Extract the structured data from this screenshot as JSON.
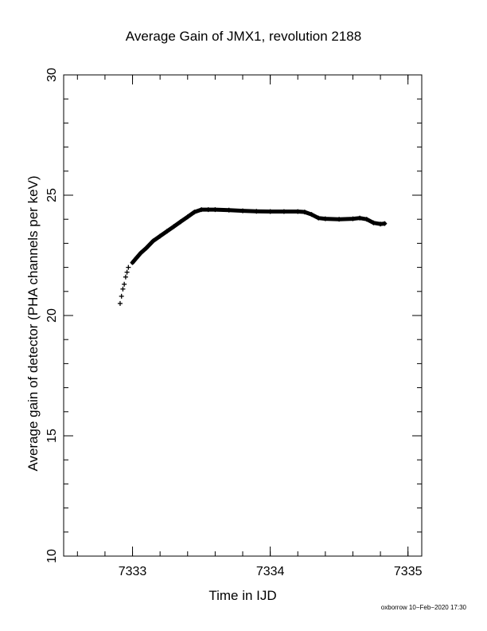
{
  "footer": "oxborrow 10−Feb−2020 17:30",
  "chart_data": {
    "type": "scatter",
    "title": "Average Gain of JMX1, revolution 2188",
    "xlabel": "Time in IJD",
    "ylabel": "Average gain of detector (PHA channels per keV)",
    "xlim": [
      7332.5,
      7335.1
    ],
    "ylim": [
      10,
      30
    ],
    "xticks": [
      7333,
      7334,
      7335
    ],
    "xtick_labels": [
      "7333",
      "7334",
      "7335"
    ],
    "yticks": [
      10,
      15,
      20,
      25,
      30
    ],
    "ytick_labels": [
      "10",
      "15",
      "20",
      "25",
      "30"
    ],
    "grid": false,
    "series": [
      {
        "marker": "+",
        "x": [
          7332.91,
          7332.92,
          7332.93,
          7332.94,
          7332.95,
          7332.96,
          7332.97,
          7333.0,
          7333.03,
          7333.06,
          7333.1,
          7333.15,
          7333.2,
          7333.25,
          7333.3,
          7333.35,
          7333.4,
          7333.45,
          7333.5,
          7333.55,
          7333.6,
          7333.7,
          7333.8,
          7333.9,
          7334.0,
          7334.1,
          7334.2,
          7334.25,
          7334.3,
          7334.35,
          7334.4,
          7334.5,
          7334.6,
          7334.65,
          7334.7,
          7334.75,
          7334.8,
          7334.83
        ],
        "y": [
          20.5,
          20.8,
          21.1,
          21.3,
          21.6,
          21.8,
          22.0,
          22.2,
          22.4,
          22.6,
          22.8,
          23.1,
          23.3,
          23.5,
          23.7,
          23.9,
          24.1,
          24.3,
          24.4,
          24.4,
          24.4,
          24.38,
          24.35,
          24.33,
          24.32,
          24.32,
          24.32,
          24.3,
          24.2,
          24.05,
          24.02,
          24.0,
          24.02,
          24.05,
          24.0,
          23.85,
          23.8,
          23.82
        ]
      }
    ]
  }
}
